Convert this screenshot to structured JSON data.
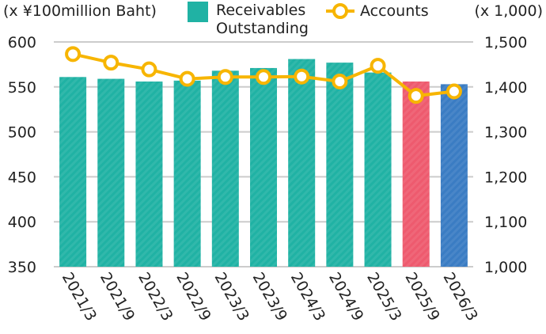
{
  "chart_data": {
    "type": "bar+line",
    "categories": [
      "2021/3",
      "2021/9",
      "2022/3",
      "2022/9",
      "2023/3",
      "2023/9",
      "2024/3",
      "2024/9",
      "2025/3",
      "2025/9",
      "2026/3"
    ],
    "left_axis": {
      "label": "(x ¥100million Baht)",
      "ylim": [
        350,
        600
      ],
      "ticks": [
        350,
        400,
        450,
        500,
        550,
        600
      ]
    },
    "right_axis": {
      "label": "(x 1,000)",
      "ylim": [
        1000,
        1500
      ],
      "ticks": [
        "1,000",
        "1,100",
        "1,200",
        "1,300",
        "1,400",
        "1,500"
      ]
    },
    "grid": true,
    "legend_placement": "top",
    "series": [
      {
        "name": "Receivables Outstanding",
        "name_lines": [
          "Receivables",
          "Outstanding"
        ],
        "type": "bar",
        "axis": "left",
        "values": [
          561,
          559,
          556,
          557,
          568,
          571,
          581,
          577,
          566,
          556,
          553
        ],
        "colors": [
          "#20b2a4",
          "#20b2a4",
          "#20b2a4",
          "#20b2a4",
          "#20b2a4",
          "#20b2a4",
          "#20b2a4",
          "#20b2a4",
          "#20b2a4",
          "#ee5a6e",
          "#3a7cc3"
        ]
      },
      {
        "name": "Accounts",
        "type": "line",
        "axis": "right",
        "color": "#f7b500",
        "values": [
          1473,
          1454,
          1439,
          1418,
          1422,
          1422,
          1423,
          1412,
          1447,
          1380,
          1390
        ]
      }
    ]
  }
}
